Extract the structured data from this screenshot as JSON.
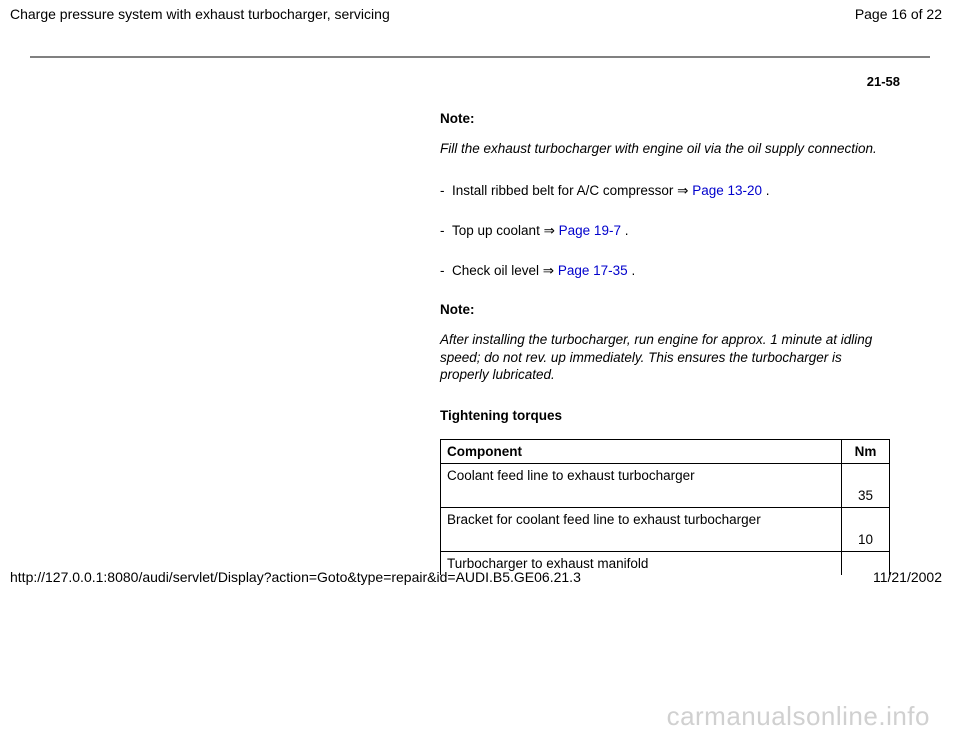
{
  "header": {
    "title": "Charge pressure system with exhaust turbocharger, servicing",
    "page_indicator": "Page 16 of 22"
  },
  "page_number_label": "21-58",
  "notes": {
    "label": "Note:",
    "note1_body": "Fill the exhaust turbocharger with engine oil via the oil supply connection.",
    "note2_body": "After installing the turbocharger, run engine for approx. 1 minute at idling speed; do not rev. up immediately. This ensures the turbocharger is properly lubricated."
  },
  "items": {
    "dash": "-",
    "arrow": "⇒",
    "i1_pre": "Install ribbed belt for A/C compressor ",
    "i1_link": "Page 13-20",
    "i1_post": " .",
    "i2_pre": "Top up coolant ",
    "i2_link": "Page 19-7",
    "i2_post": " .",
    "i3_pre": "Check oil level ",
    "i3_link": "Page 17-35",
    "i3_post": " ."
  },
  "torques": {
    "heading": "Tightening torques",
    "col_component": "Component",
    "col_nm": "Nm",
    "r1_comp": "Coolant feed line to exhaust turbocharger",
    "r1_nm": "35",
    "r2_comp": "Bracket for coolant feed line to exhaust turbocharger",
    "r2_nm": "10",
    "r3_comp": "Turbocharger to exhaust manifold",
    "r3_nm": ""
  },
  "footer": {
    "url": "http://127.0.0.1:8080/audi/servlet/Display?action=Goto&type=repair&id=AUDI.B5.GE06.21.3",
    "date": "11/21/2002"
  },
  "watermark": "carmanualsonline.info"
}
